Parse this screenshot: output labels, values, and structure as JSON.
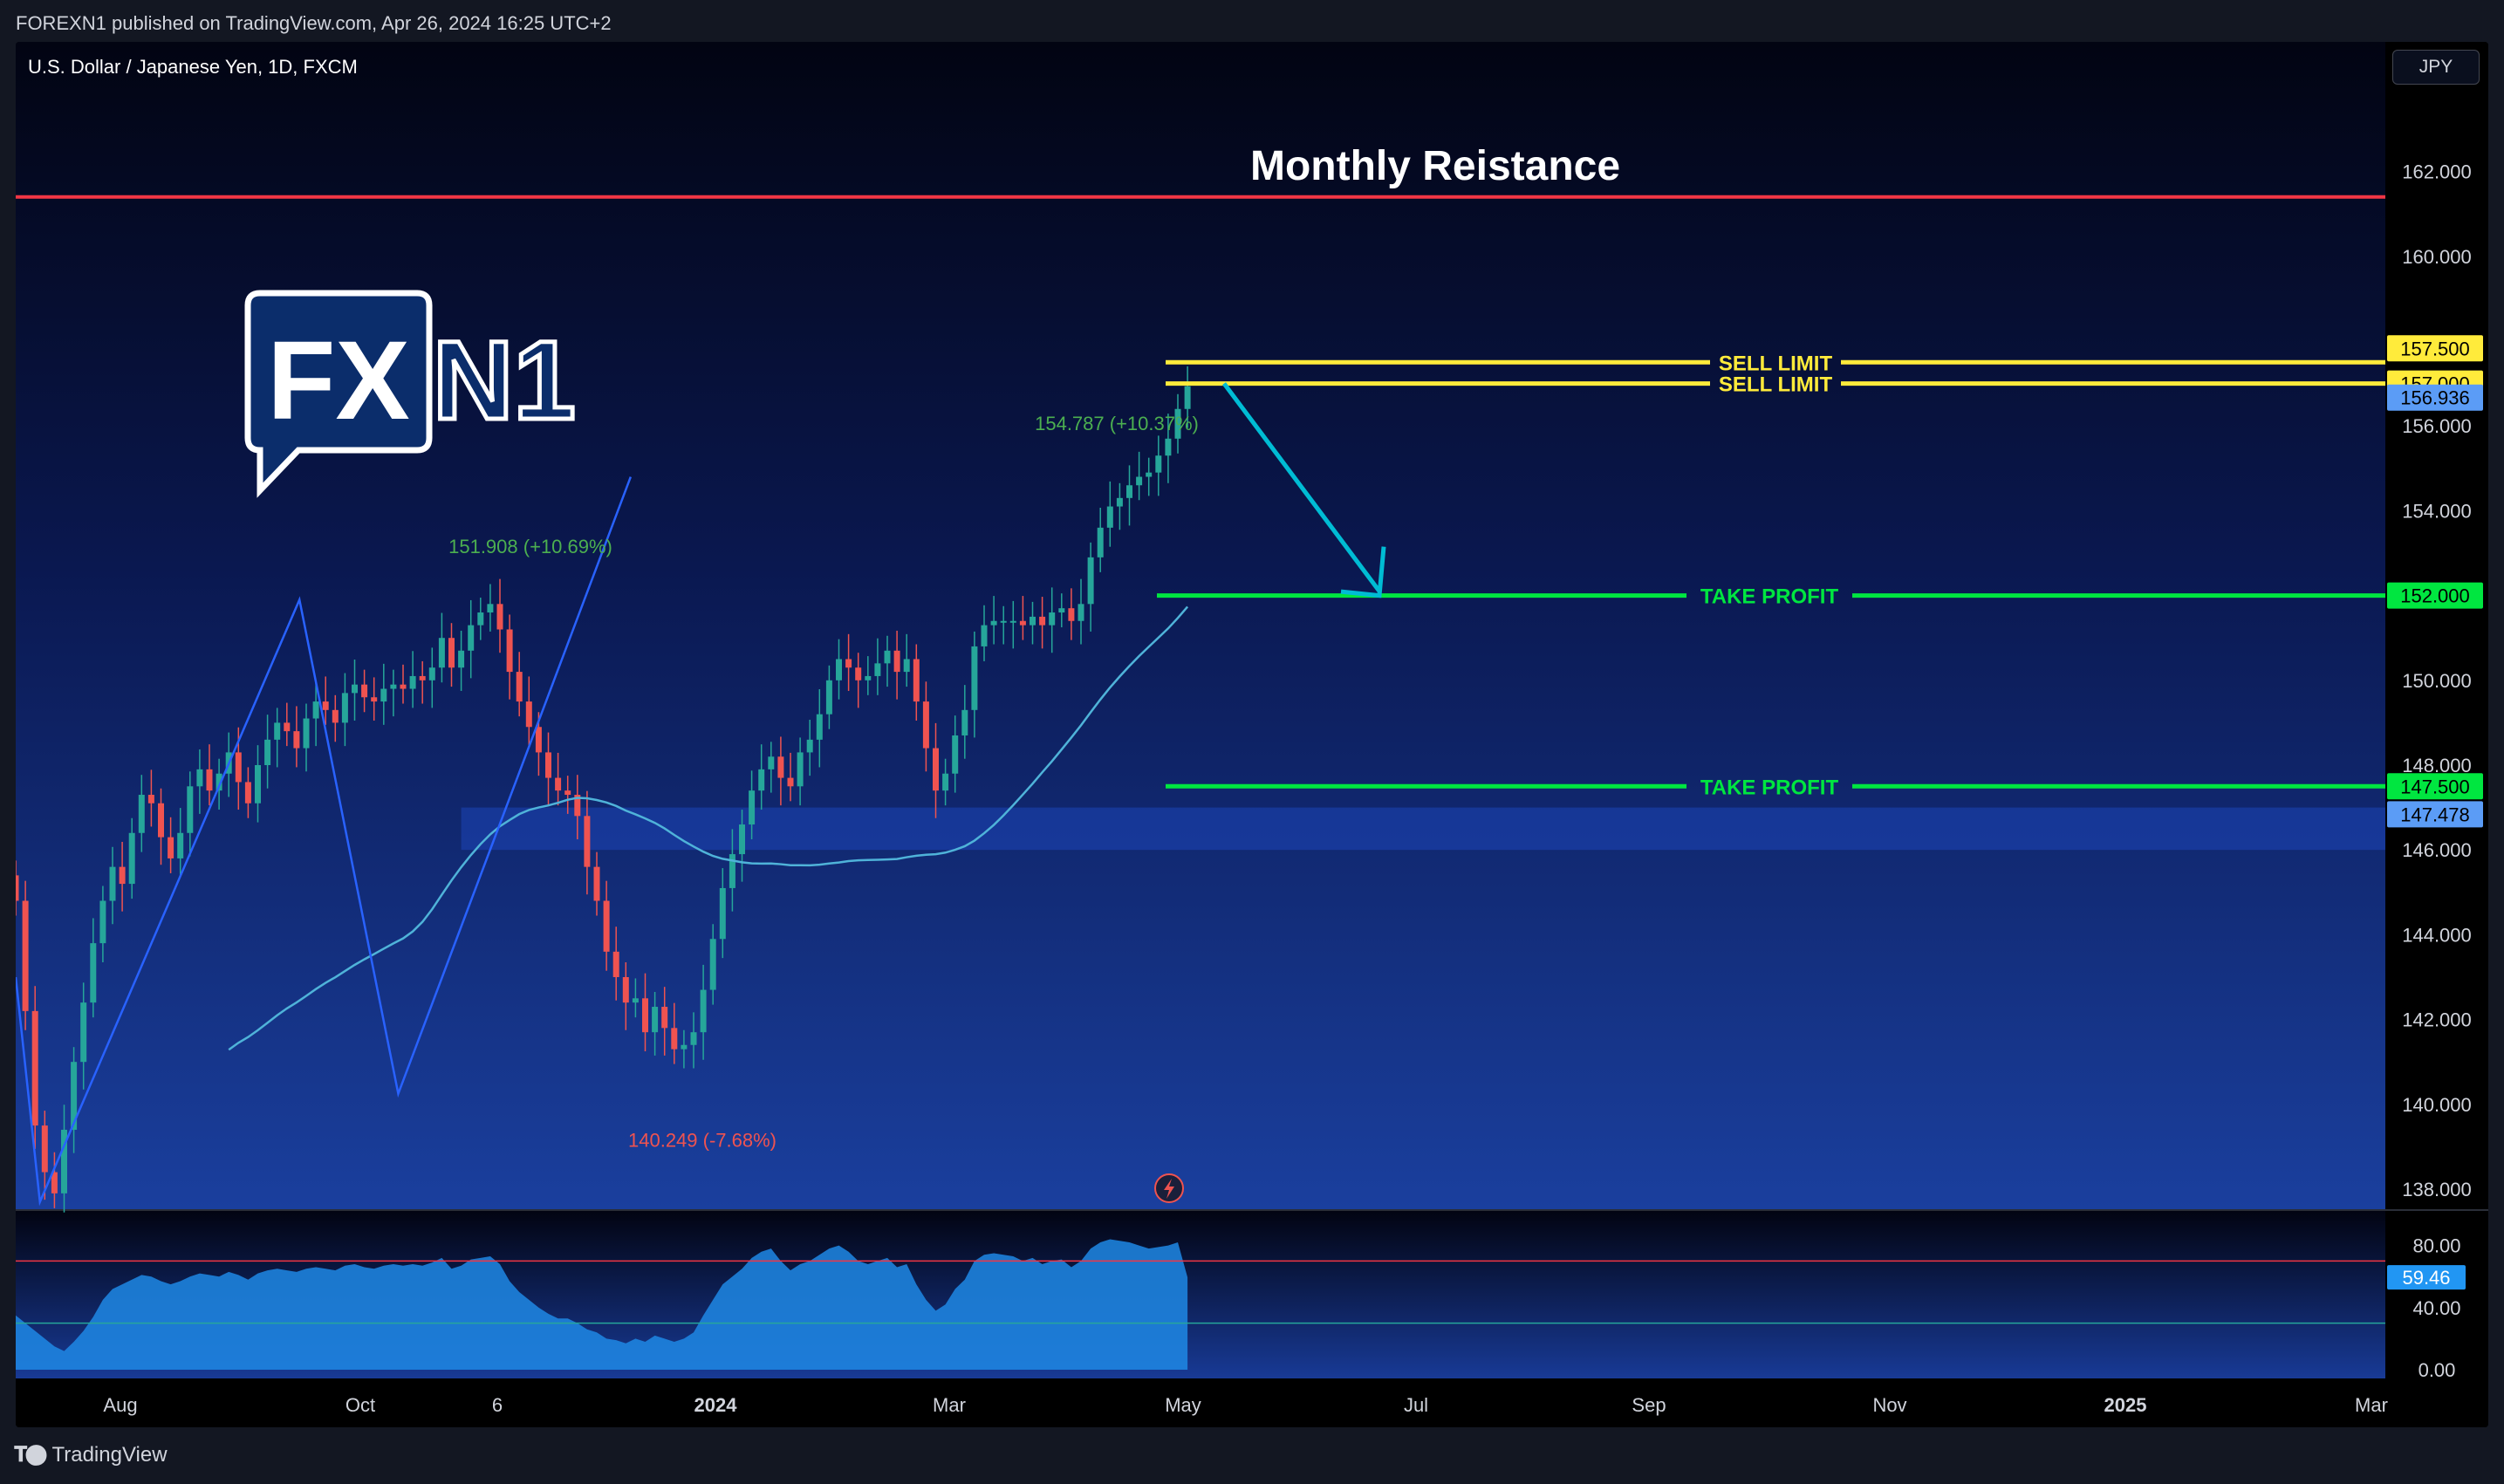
{
  "header": {
    "publish_text": "FOREXN1 published on TradingView.com, Apr 26, 2024 16:25 UTC+2"
  },
  "footer": {
    "brand": "TradingView"
  },
  "symbol": {
    "title": "U.S. Dollar / Japanese Yen, 1D, FXCM",
    "currency": "JPY"
  },
  "logo": {
    "text": "FXN1"
  },
  "colors": {
    "resistance": "#f23645",
    "sell_limit": "#ffeb3b",
    "take_profit": "#00e640",
    "arrow": "#00bcd4",
    "zigzag": "#2962ff",
    "ma": "#4fb3d9",
    "candle_up": "#26a69a",
    "candle_down": "#ef5350",
    "rsi_fill": "#1e88e5"
  },
  "chart_data": {
    "type": "candlestick",
    "symbol": "USDJPY",
    "timeframe": "1D",
    "y_axis": {
      "range": [
        137.6,
        164.6
      ],
      "ticks": [
        "138.000",
        "140.000",
        "142.000",
        "144.000",
        "146.000",
        "148.000",
        "150.000",
        "152.000",
        "154.000",
        "156.000",
        "160.000",
        "162.000"
      ]
    },
    "x_axis": {
      "ticks": [
        "Aug",
        "Oct",
        "6",
        "2024",
        "Mar",
        "May",
        "Jul",
        "Sep",
        "Nov",
        "2025",
        "Mar"
      ]
    },
    "price_series_close": [
      144.8,
      142.2,
      139.5,
      138.4,
      137.9,
      139.4,
      141.0,
      142.4,
      143.8,
      144.8,
      145.6,
      145.2,
      146.4,
      147.3,
      147.1,
      146.3,
      145.8,
      146.4,
      147.5,
      147.9,
      147.4,
      147.8,
      148.3,
      147.6,
      147.1,
      148.0,
      148.6,
      149.0,
      148.8,
      148.4,
      149.1,
      149.5,
      149.3,
      149.0,
      149.7,
      149.9,
      149.6,
      149.5,
      149.8,
      149.9,
      149.8,
      150.1,
      150.0,
      150.3,
      151.0,
      150.3,
      150.7,
      151.3,
      151.6,
      151.8,
      151.2,
      150.2,
      149.5,
      148.9,
      148.3,
      147.7,
      147.4,
      147.3,
      146.8,
      145.6,
      144.8,
      143.6,
      143.0,
      142.4,
      142.5,
      141.7,
      142.3,
      141.8,
      141.3,
      141.4,
      141.7,
      142.7,
      143.9,
      145.1,
      145.9,
      146.6,
      147.4,
      147.9,
      148.2,
      147.7,
      147.5,
      148.3,
      148.6,
      149.2,
      150.0,
      150.5,
      150.3,
      150.0,
      150.1,
      150.4,
      150.7,
      150.2,
      150.5,
      149.5,
      148.4,
      147.4,
      147.8,
      148.7,
      149.3,
      150.8,
      151.3,
      151.4,
      151.4,
      151.4,
      151.3,
      151.5,
      151.3,
      151.6,
      151.7,
      151.4,
      151.8,
      152.9,
      153.6,
      154.1,
      154.3,
      154.6,
      154.8,
      154.9,
      155.3,
      155.7,
      156.4,
      156.936
    ],
    "annotations": [
      {
        "label": "151.908 (+10.69%)",
        "type": "swing_high"
      },
      {
        "label": "140.249 (-7.68%)",
        "type": "swing_low"
      },
      {
        "label": "154.787 (+10.37%)",
        "type": "swing_high"
      },
      {
        "label": "Monthly Reistance",
        "price": 161.4
      },
      {
        "label": "SELL LIMIT",
        "price": 157.5
      },
      {
        "label": "SELL LIMIT",
        "price": 157.0
      },
      {
        "label": "TAKE PROFIT",
        "price": 152.0
      },
      {
        "label": "TAKE PROFIT",
        "price": 147.5
      }
    ],
    "price_labels": [
      "157.500",
      "157.000",
      "156.936",
      "152.000",
      "147.500",
      "147.478"
    ],
    "support_zone": [
      146.0,
      147.0
    ],
    "indicator": {
      "name": "RSI",
      "y_ticks": [
        "80.00",
        "40.00",
        "0.00"
      ],
      "levels": [
        70,
        30
      ],
      "last_value": "59.46",
      "values": [
        35,
        30,
        25,
        20,
        15,
        12,
        18,
        25,
        34,
        45,
        52,
        55,
        58,
        61,
        60,
        57,
        55,
        57,
        60,
        62,
        61,
        60,
        63,
        61,
        58,
        62,
        64,
        65,
        64,
        63,
        65,
        66,
        65,
        64,
        67,
        68,
        66,
        65,
        67,
        68,
        67,
        68,
        67,
        69,
        72,
        65,
        67,
        71,
        72,
        73,
        68,
        57,
        50,
        45,
        40,
        36,
        33,
        33,
        30,
        26,
        24,
        20,
        19,
        17,
        20,
        18,
        22,
        20,
        18,
        20,
        24,
        35,
        45,
        55,
        60,
        65,
        72,
        76,
        78,
        70,
        64,
        68,
        70,
        74,
        78,
        80,
        76,
        70,
        68,
        70,
        72,
        66,
        68,
        55,
        45,
        38,
        42,
        52,
        58,
        70,
        74,
        75,
        74,
        73,
        70,
        72,
        68,
        70,
        71,
        66,
        70,
        78,
        82,
        84,
        83,
        82,
        80,
        78,
        79,
        80,
        82,
        59.46
      ]
    }
  }
}
